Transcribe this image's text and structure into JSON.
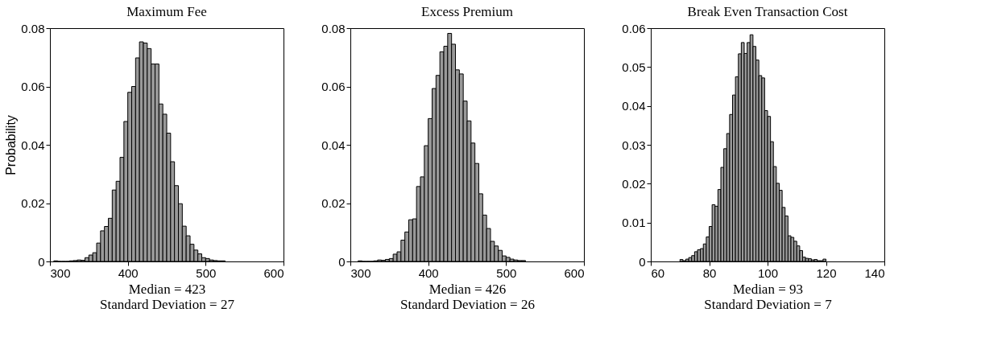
{
  "chart_data": [
    {
      "type": "histogram",
      "title": "Maximum Fee",
      "ylabel": "Probability",
      "color": "#999999",
      "bins": [
        305,
        310,
        315,
        320,
        325,
        330,
        335,
        340,
        345,
        350,
        355,
        360,
        365,
        370,
        375,
        380,
        385,
        390,
        395,
        400,
        405,
        410,
        415,
        420,
        425,
        430,
        435,
        440,
        445,
        450,
        455,
        460,
        465,
        470,
        475,
        480,
        485,
        490,
        495,
        500,
        505,
        510,
        515,
        520,
        525,
        530
      ],
      "values": [
        0.0002,
        0,
        0,
        0,
        0.0002,
        0.0003,
        0.0005,
        0.0004,
        0.0013,
        0.0022,
        0.003,
        0.0063,
        0.0105,
        0.012,
        0.0148,
        0.0245,
        0.0275,
        0.0357,
        0.048,
        0.058,
        0.06,
        0.0698,
        0.0753,
        0.0749,
        0.073,
        0.0677,
        0.0677,
        0.054,
        0.0505,
        0.044,
        0.0342,
        0.026,
        0.0198,
        0.0121,
        0.0088,
        0.0059,
        0.0039,
        0.0026,
        0.0013,
        0.001,
        0.0005,
        0.0003,
        0.0002,
        0.0002,
        null
      ],
      "xlim": [
        300,
        600
      ],
      "xticks": [
        300,
        400,
        500,
        600
      ],
      "ylim": [
        0,
        0.08
      ],
      "yticks": [
        0,
        0.02,
        0.04,
        0.06,
        0.08
      ],
      "grid": false,
      "annotations": [
        "Median = 423",
        "Standard Deviation = 27"
      ]
    },
    {
      "type": "histogram",
      "title": "Excess Premium",
      "color": "#999999",
      "bins": [
        310,
        315,
        320,
        325,
        330,
        335,
        340,
        345,
        350,
        355,
        360,
        365,
        370,
        375,
        380,
        385,
        390,
        395,
        400,
        405,
        410,
        415,
        420,
        425,
        430,
        435,
        440,
        445,
        450,
        455,
        460,
        465,
        470,
        475,
        480,
        485,
        490,
        495,
        500,
        505,
        510,
        515,
        520,
        525,
        530
      ],
      "values": [
        0.0002,
        0,
        0,
        0,
        0.0002,
        0.0005,
        0.0004,
        0.0007,
        0.001,
        0.0025,
        0.0033,
        0.0073,
        0.0101,
        0.0143,
        0.0146,
        0.0257,
        0.029,
        0.0397,
        0.049,
        0.0593,
        0.0638,
        0.0719,
        0.0738,
        0.0782,
        0.0745,
        0.0657,
        0.0643,
        0.055,
        0.0482,
        0.0406,
        0.0336,
        0.0232,
        0.0159,
        0.0113,
        0.0069,
        0.0053,
        0.0038,
        0.0019,
        0.0014,
        0.0008,
        0.0005,
        0.0003,
        0.0003,
        null
      ],
      "xlim": [
        300,
        600
      ],
      "xticks": [
        300,
        400,
        500,
        600
      ],
      "ylim": [
        0,
        0.08
      ],
      "yticks": [
        0,
        0.02,
        0.04,
        0.06,
        0.08
      ],
      "grid": false,
      "annotations": [
        "Median = 426",
        "Standard Deviation = 26"
      ]
    },
    {
      "type": "histogram",
      "title": "Break Even Transaction Cost",
      "color": "#999999",
      "bins": [
        68,
        69,
        70,
        71,
        72,
        73,
        74,
        75,
        76,
        77,
        78,
        79,
        80,
        81,
        82,
        83,
        84,
        85,
        86,
        87,
        88,
        89,
        90,
        91,
        92,
        93,
        94,
        95,
        96,
        97,
        98,
        99,
        100,
        101,
        102,
        103,
        104,
        105,
        106,
        107,
        108,
        109,
        110,
        111,
        112,
        113,
        114,
        115,
        116,
        117,
        118,
        119,
        120
      ],
      "values": [
        null,
        null,
        0.0005,
        0.0002,
        0.0006,
        0.001,
        0.0015,
        0.0025,
        0.003,
        0.0033,
        0.0045,
        0.0063,
        0.009,
        0.0146,
        0.0142,
        0.0185,
        0.0242,
        0.029,
        0.0329,
        0.0378,
        0.0428,
        0.0475,
        0.0534,
        0.0563,
        0.0535,
        0.0563,
        0.0583,
        0.0553,
        0.0518,
        0.0478,
        0.0472,
        0.0388,
        0.0373,
        0.0308,
        0.0244,
        0.0201,
        0.0183,
        0.0139,
        0.0117,
        0.0066,
        0.0062,
        0.0052,
        0.004,
        0.0028,
        0.0011,
        0.0008,
        0.0007,
        0.0004,
        0.0005,
        0.0002,
        0.0002,
        0.0006
      ],
      "xlim": [
        60,
        140
      ],
      "xticks": [
        60,
        80,
        100,
        120,
        140
      ],
      "ylim": [
        0,
        0.06
      ],
      "yticks": [
        0,
        0.01,
        0.02,
        0.03,
        0.04,
        0.05,
        0.06
      ],
      "grid": false,
      "annotations": [
        "Median = 93",
        "Standard Deviation = 7"
      ]
    }
  ]
}
